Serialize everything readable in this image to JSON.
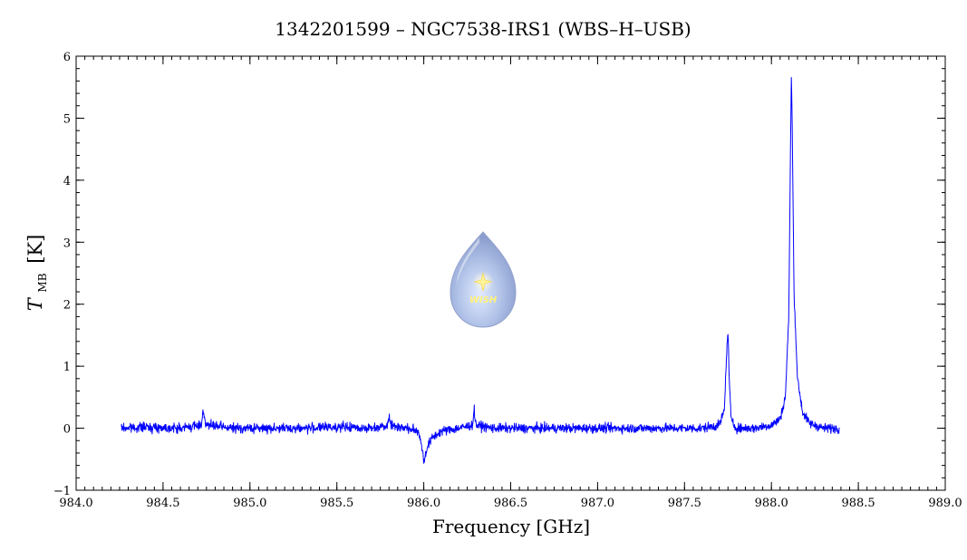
{
  "chart_data": {
    "type": "line",
    "title": "1342201599 – NGC7538-IRS1 (WBS–H–USB)",
    "xlabel": "Frequency [GHz]",
    "ylabel_symbol": "T",
    "ylabel_subscript": "MB",
    "ylabel_unit": "[K]",
    "xlim": [
      984.0,
      989.0
    ],
    "ylim": [
      -1,
      6
    ],
    "x_ticks": [
      "984.0",
      "984.5",
      "985.0",
      "985.5",
      "986.0",
      "986.5",
      "987.0",
      "987.5",
      "988.0",
      "988.5",
      "989.0"
    ],
    "y_ticks": [
      "−1",
      "0",
      "1",
      "2",
      "3",
      "4",
      "5",
      "6"
    ],
    "grid": false,
    "series_color": "#0000ff",
    "series": [
      {
        "x": [
          984.26,
          984.4,
          984.6,
          984.72,
          984.73,
          984.75,
          984.9,
          985.1,
          985.3,
          985.5,
          985.7,
          985.79,
          985.8,
          985.81,
          985.9,
          985.97,
          985.99,
          986.0,
          986.02,
          986.05,
          986.1,
          986.2,
          986.28,
          986.29,
          986.3,
          986.4,
          986.6,
          986.8,
          987.0,
          987.2,
          987.4,
          987.6,
          987.7,
          987.73,
          987.74,
          987.75,
          987.76,
          987.77,
          987.8,
          987.9,
          988.0,
          988.05,
          988.08,
          988.1,
          988.11,
          988.115,
          988.12,
          988.13,
          988.15,
          988.18,
          988.22,
          988.3,
          988.39
        ],
        "y": [
          0.0,
          0.02,
          0.0,
          0.05,
          0.28,
          0.05,
          0.0,
          0.0,
          0.0,
          0.02,
          0.0,
          0.05,
          0.22,
          0.05,
          0.0,
          -0.05,
          -0.3,
          -0.55,
          -0.3,
          -0.15,
          -0.05,
          0.0,
          0.05,
          0.3,
          0.05,
          0.0,
          0.0,
          0.0,
          0.0,
          0.0,
          0.0,
          0.0,
          0.05,
          0.3,
          1.1,
          1.55,
          0.6,
          0.1,
          0.0,
          0.0,
          0.05,
          0.15,
          0.5,
          1.8,
          4.6,
          5.7,
          4.8,
          2.2,
          0.8,
          0.25,
          0.08,
          0.0,
          0.0
        ]
      }
    ]
  },
  "watermark": {
    "text": "WISH"
  }
}
